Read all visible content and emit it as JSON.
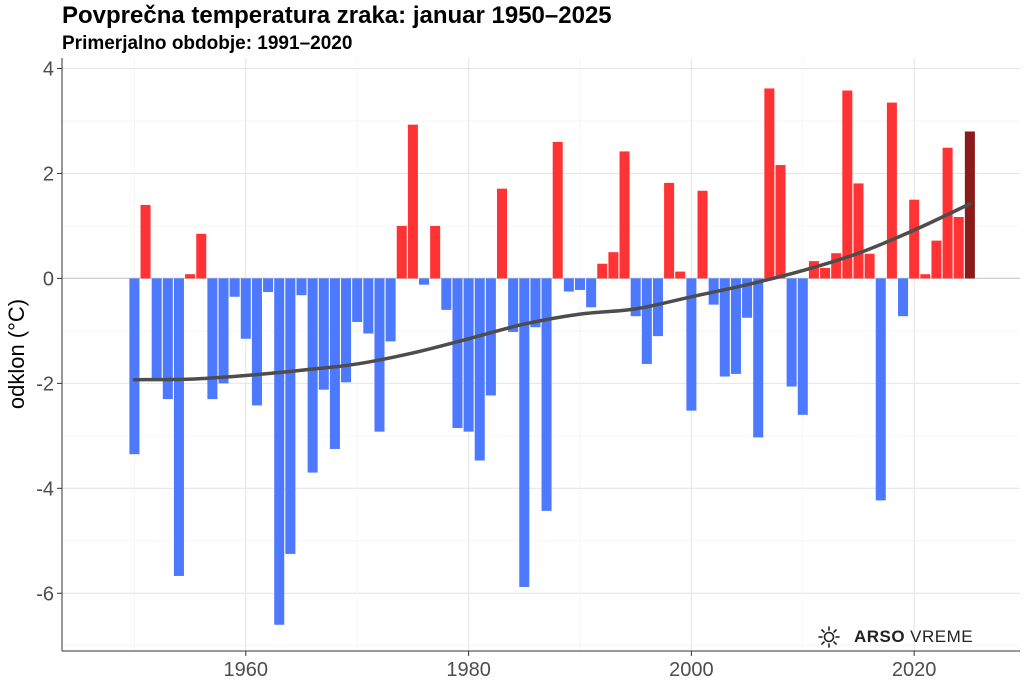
{
  "chart_data": {
    "type": "bar",
    "title": "Povprečna temperatura zraka: januar 1950–2025",
    "subtitle": "Primerjalno obdobje: 1991–2020",
    "xlabel": "",
    "ylabel": "odklon (°C)",
    "xlim": [
      1943.5,
      2029.5
    ],
    "ylim": [
      -7.1,
      4.2
    ],
    "xticks": [
      1960,
      1980,
      2000,
      2020
    ],
    "yticks": [
      -6,
      -4,
      -2,
      0,
      2,
      4
    ],
    "grid": true,
    "legend": "none",
    "colors": {
      "positive": "#ff3333",
      "negative": "#4d79ff",
      "latest": "#8b1a1a",
      "trend": "#4d4d4d"
    },
    "years": [
      1950,
      1951,
      1952,
      1953,
      1954,
      1955,
      1956,
      1957,
      1958,
      1959,
      1960,
      1961,
      1962,
      1963,
      1964,
      1965,
      1966,
      1967,
      1968,
      1969,
      1970,
      1971,
      1972,
      1973,
      1974,
      1975,
      1976,
      1977,
      1978,
      1979,
      1980,
      1981,
      1982,
      1983,
      1984,
      1985,
      1986,
      1987,
      1988,
      1989,
      1990,
      1991,
      1992,
      1993,
      1994,
      1995,
      1996,
      1997,
      1998,
      1999,
      2000,
      2001,
      2002,
      2003,
      2004,
      2005,
      2006,
      2007,
      2008,
      2009,
      2010,
      2011,
      2012,
      2013,
      2014,
      2015,
      2016,
      2017,
      2018,
      2019,
      2020,
      2021,
      2022,
      2023,
      2024,
      2025
    ],
    "values": [
      -3.35,
      1.4,
      -1.9,
      -2.3,
      -5.67,
      0.08,
      0.85,
      -2.3,
      -2.0,
      -0.35,
      -1.15,
      -2.42,
      -0.26,
      -6.6,
      -5.25,
      -0.32,
      -3.7,
      -2.12,
      -3.25,
      -1.98,
      -0.83,
      -1.05,
      -2.92,
      -1.2,
      1.0,
      2.93,
      -0.12,
      1.0,
      -0.6,
      -2.85,
      -2.92,
      -3.47,
      -2.23,
      1.71,
      -1.02,
      -5.88,
      -0.93,
      -4.43,
      2.6,
      -0.25,
      -0.22,
      -0.55,
      0.28,
      0.5,
      2.42,
      -0.72,
      -1.63,
      -1.1,
      1.82,
      0.13,
      -2.52,
      1.67,
      -0.5,
      -1.87,
      -1.82,
      -0.75,
      -3.03,
      3.62,
      2.16,
      -2.06,
      -2.6,
      0.33,
      0.2,
      0.48,
      3.58,
      1.81,
      0.47,
      -4.23,
      3.35,
      -0.72,
      1.5,
      0.08,
      0.72,
      2.49,
      1.17,
      2.8
    ],
    "trend": {
      "years": [
        1950,
        1955,
        1960,
        1965,
        1970,
        1975,
        1980,
        1985,
        1990,
        1995,
        2000,
        2005,
        2010,
        2015,
        2020,
        2025
      ],
      "values": [
        -1.93,
        -1.92,
        -1.85,
        -1.75,
        -1.63,
        -1.42,
        -1.15,
        -0.87,
        -0.68,
        -0.58,
        -0.35,
        -0.12,
        0.15,
        0.48,
        0.92,
        1.42
      ]
    }
  },
  "branding": {
    "brand": "ARSO",
    "suffix": "VREME",
    "icon": "sun-icon"
  }
}
